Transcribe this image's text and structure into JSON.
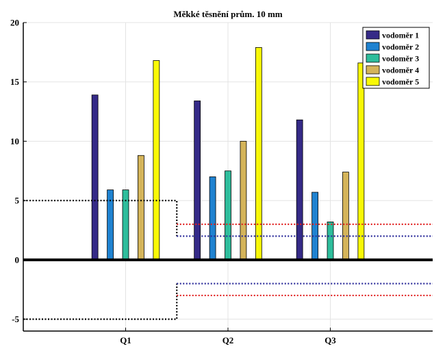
{
  "chart_data": {
    "type": "bar",
    "title": "Měkké těsnění prům. 10 mm",
    "xlabel": "",
    "ylabel": "",
    "categories": [
      "Q1",
      "Q2",
      "Q3"
    ],
    "ylim": [
      -6,
      20
    ],
    "yticks": [
      -5,
      0,
      5,
      10,
      15,
      20
    ],
    "grid": true,
    "legend_position": "top-right",
    "series": [
      {
        "name": "vodoměr 1",
        "color": "#352a87",
        "values": [
          13.9,
          13.4,
          11.8
        ]
      },
      {
        "name": "vodoměr 2",
        "color": "#1f82d0",
        "values": [
          5.9,
          7.0,
          5.7
        ]
      },
      {
        "name": "vodoměr 3",
        "color": "#2ebd9c",
        "values": [
          5.9,
          7.5,
          3.2
        ]
      },
      {
        "name": "vodoměr 4",
        "color": "#d4b45a",
        "values": [
          8.8,
          10.0,
          7.4
        ]
      },
      {
        "name": "vodoměr 5",
        "color": "#f9f906",
        "values": [
          16.8,
          17.9,
          16.6
        ]
      }
    ],
    "reference_lines": [
      {
        "color": "#000000",
        "points": [
          [
            0.0,
            5
          ],
          [
            1.5,
            5
          ],
          [
            1.5,
            2
          ]
        ]
      },
      {
        "color": "#000000",
        "points": [
          [
            0.0,
            -5
          ],
          [
            1.5,
            -5
          ],
          [
            1.5,
            -2
          ]
        ]
      },
      {
        "color": "#e02020",
        "points": [
          [
            1.5,
            3
          ],
          [
            4.0,
            3
          ]
        ]
      },
      {
        "color": "#2b2b9a",
        "points": [
          [
            1.5,
            2
          ],
          [
            4.0,
            2
          ]
        ]
      },
      {
        "color": "#2b2b9a",
        "points": [
          [
            1.5,
            -2
          ],
          [
            4.0,
            -2
          ]
        ]
      },
      {
        "color": "#e02020",
        "points": [
          [
            1.5,
            -3
          ],
          [
            4.0,
            -3
          ]
        ]
      }
    ],
    "xlim": [
      0,
      4
    ]
  }
}
